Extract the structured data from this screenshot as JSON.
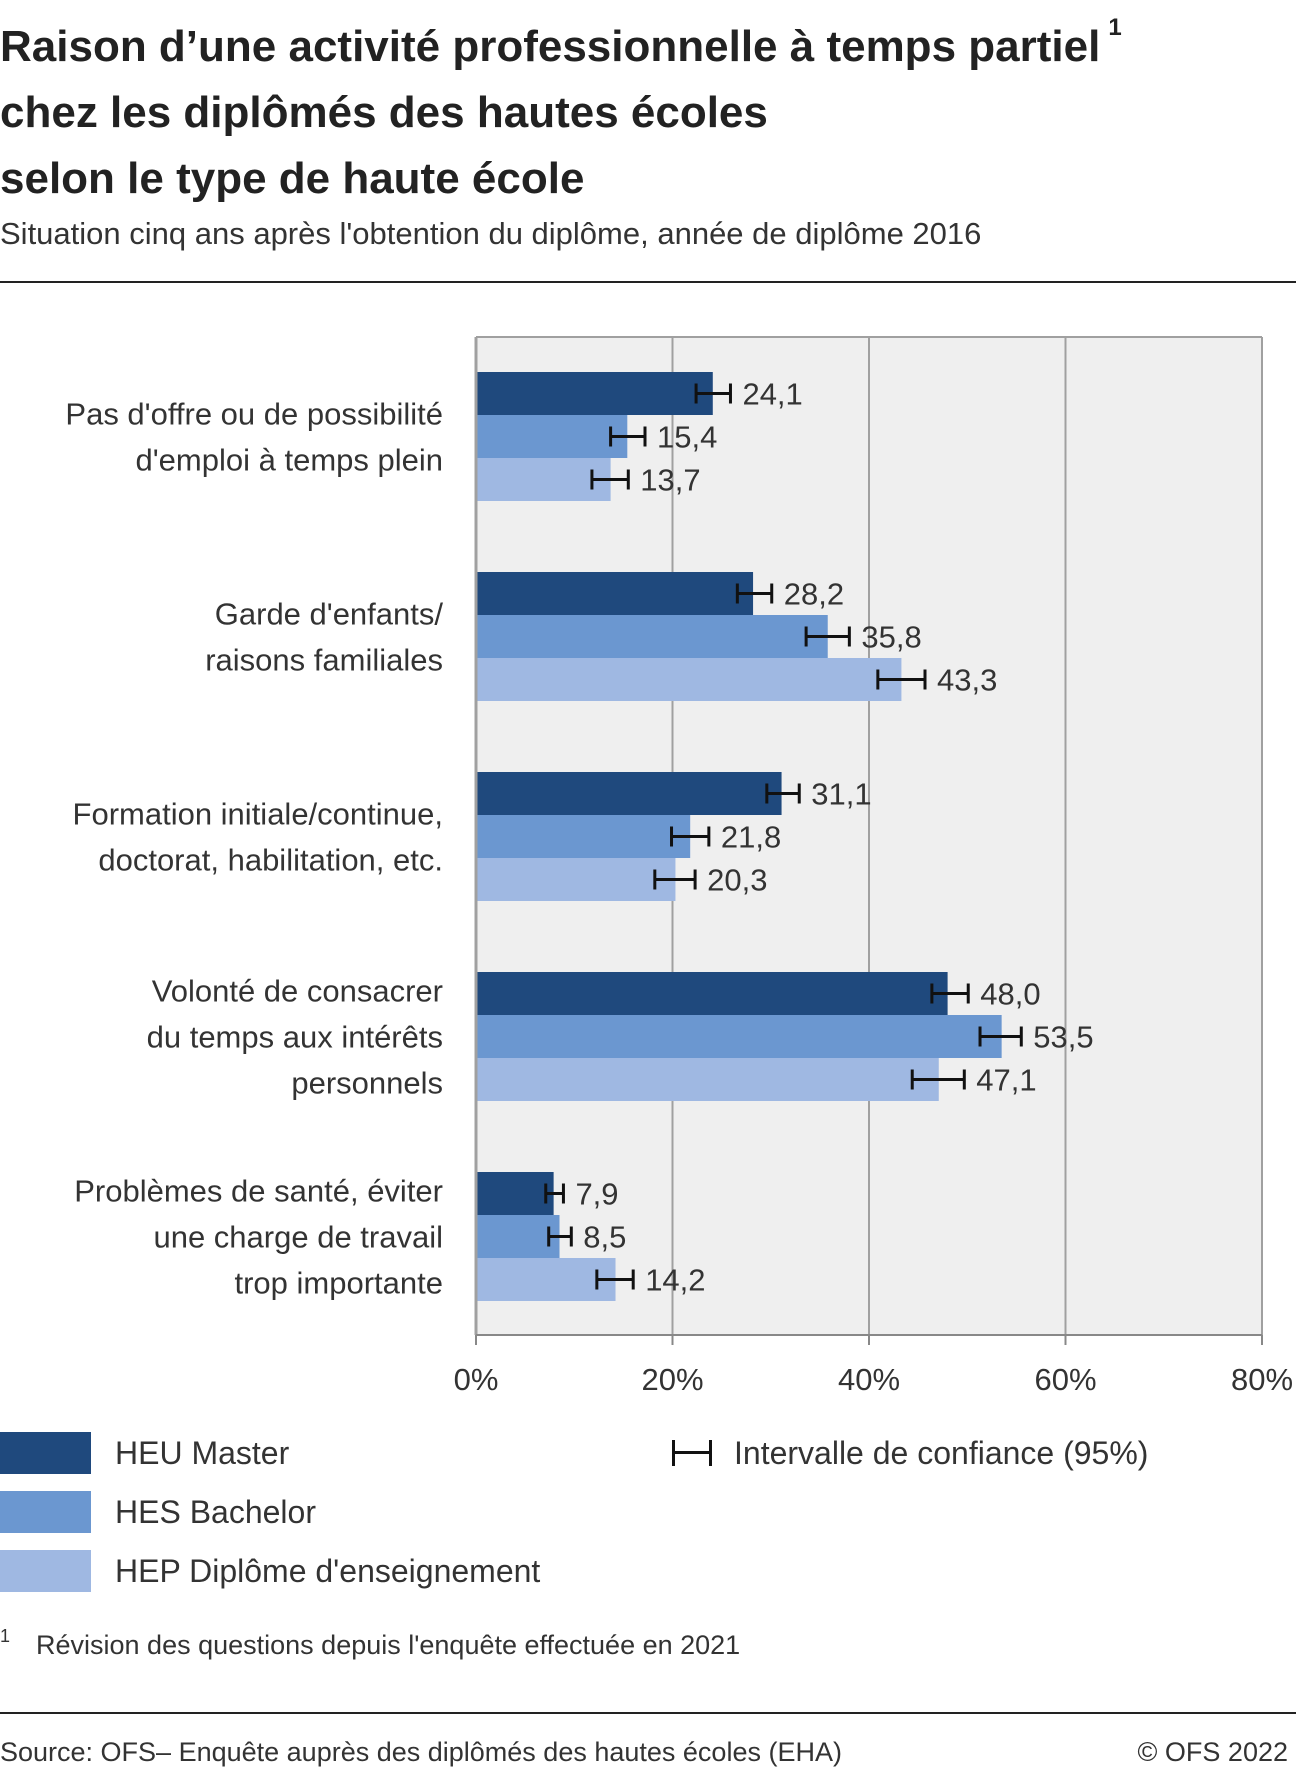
{
  "header": {
    "title_lines": [
      "Raison d’une activité professionnelle à temps partiel",
      "chez les diplômés des hautes écoles",
      "selon le type de haute école"
    ],
    "title_footnote_mark": "1",
    "subtitle": "Situation cinq ans après l'obtention du diplôme, année de diplôme 2016"
  },
  "chart_data": {
    "type": "bar",
    "orientation": "horizontal",
    "categories": [
      [
        "Pas d'offre ou de possibilité",
        "d'emploi à temps plein"
      ],
      [
        "Garde d'enfants/",
        "raisons familiales"
      ],
      [
        "Formation initiale/continue,",
        "doctorat, habilitation, etc."
      ],
      [
        "Volonté de consacrer",
        "du temps aux intérêts",
        "personnels"
      ],
      [
        "Problèmes de santé, éviter",
        "une charge de travail",
        "trop importante"
      ]
    ],
    "series": [
      {
        "name": "HEU Master",
        "color": "#1f497d",
        "values": [
          24.1,
          28.2,
          31.1,
          48.0,
          7.9
        ],
        "labels": [
          "24,1",
          "28,2",
          "31,1",
          "48,0",
          "7,9"
        ],
        "ci_low": [
          22.4,
          26.6,
          29.6,
          46.4,
          7.1
        ],
        "ci_high": [
          25.9,
          30.1,
          32.9,
          50.1,
          8.9
        ]
      },
      {
        "name": "HES Bachelor",
        "color": "#6b97d0",
        "values": [
          15.4,
          35.8,
          21.8,
          53.5,
          8.5
        ],
        "labels": [
          "15,4",
          "35,8",
          "21,8",
          "53,5",
          "8,5"
        ],
        "ci_low": [
          13.7,
          33.6,
          19.9,
          51.3,
          7.4
        ],
        "ci_high": [
          17.2,
          38.0,
          23.7,
          55.5,
          9.7
        ]
      },
      {
        "name": "HEP Diplôme d'enseignement",
        "color": "#9fb8e2",
        "values": [
          13.7,
          43.3,
          20.3,
          47.1,
          14.2
        ],
        "labels": [
          "13,7",
          "43,3",
          "20,3",
          "47,1",
          "14,2"
        ],
        "ci_low": [
          11.8,
          40.9,
          18.2,
          44.4,
          12.3
        ],
        "ci_high": [
          15.5,
          45.7,
          22.3,
          49.7,
          16.0
        ]
      }
    ],
    "xlim": [
      0,
      80
    ],
    "xticks": [
      0,
      20,
      40,
      60,
      80
    ],
    "xtick_labels": [
      "0%",
      "20%",
      "40%",
      "60%",
      "80%"
    ],
    "grid": true,
    "plot_background": "#efefef",
    "gridline_color": "#a0a0a0",
    "legend_position": "bottom-left",
    "ci_legend_label": "Intervalle de confiance (95%)"
  },
  "footnote": {
    "mark": "1",
    "text": "Révision des questions depuis l'enquête effectuée en 2021"
  },
  "footer": {
    "source": "Source: OFS– Enquête auprès des diplômés des hautes écoles (EHA)",
    "copyright": "© OFS 2022"
  }
}
